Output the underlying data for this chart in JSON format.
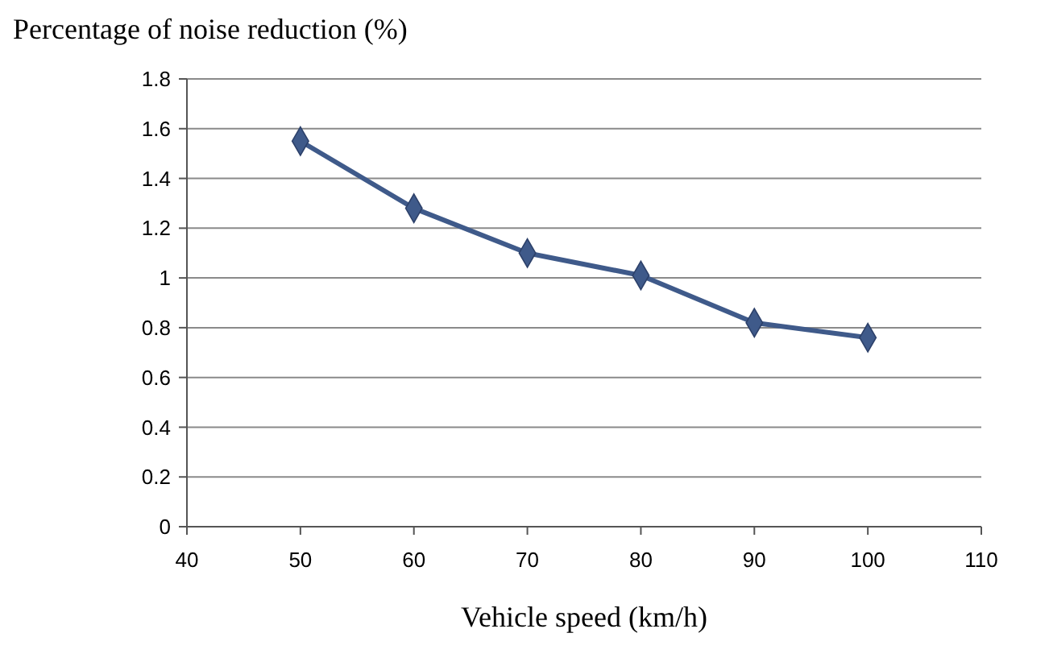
{
  "chart_data": {
    "type": "line",
    "ylabel": "Percentage of noise reduction (%)",
    "xlabel": "Vehicle speed (km/h)",
    "x": [
      50,
      60,
      70,
      80,
      90,
      100
    ],
    "series": [
      {
        "color": "#3f5a8a",
        "values": [
          1.55,
          1.28,
          1.1,
          1.01,
          0.82,
          0.76
        ]
      }
    ],
    "xlim": [
      40,
      110
    ],
    "xticks": [
      40,
      50,
      60,
      70,
      80,
      90,
      100,
      110
    ],
    "ylim": [
      0,
      1.8
    ],
    "yticks": [
      0,
      0.2,
      0.4,
      0.6,
      0.8,
      1,
      1.2,
      1.4,
      1.6,
      1.8
    ],
    "grid": "y",
    "marker": "diamond",
    "line_style": "solid"
  }
}
